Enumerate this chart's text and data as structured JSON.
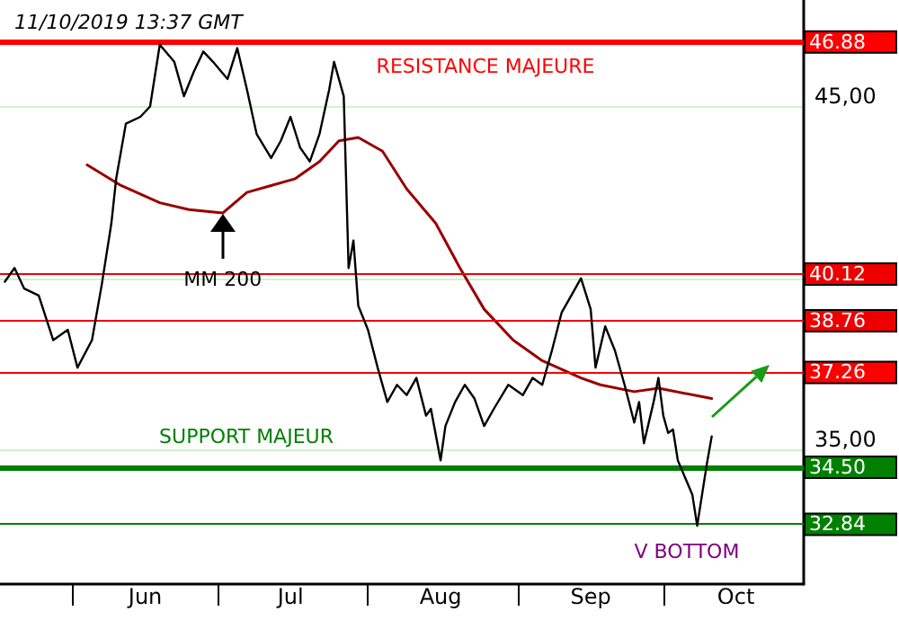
{
  "chart_data": {
    "type": "line",
    "title": "11/10/2019 13:37 GMT",
    "xlim": [
      "2019-05-17",
      "2019-10-30"
    ],
    "xticks": [
      {
        "value": "2019-06-01",
        "label": null
      },
      {
        "value": "2019-06-16",
        "label": "Jun"
      },
      {
        "value": "2019-07-01",
        "label": null
      },
      {
        "value": "2019-07-16",
        "label": "Jul"
      },
      {
        "value": "2019-08-01",
        "label": null
      },
      {
        "value": "2019-08-16",
        "label": "Aug"
      },
      {
        "value": "2019-09-01",
        "label": null
      },
      {
        "value": "2019-09-16",
        "label": "Sep"
      },
      {
        "value": "2019-10-01",
        "label": null
      },
      {
        "value": "2019-10-16",
        "label": "Oct"
      }
    ],
    "ylim": [
      31.1,
      48.1
    ],
    "yticks": [
      {
        "value": 35,
        "label": "35,00"
      },
      {
        "value": 40,
        "label": null
      },
      {
        "value": 45,
        "label": "45,00"
      }
    ],
    "grid": "y",
    "marker": "none",
    "line_style": "solid",
    "series": [
      {
        "color": "#000000",
        "x": [
          "2019-05-18",
          "2019-05-20",
          "2019-05-22",
          "2019-05-25",
          "2019-05-28",
          "2019-05-31",
          "2019-06-02",
          "2019-06-05",
          "2019-06-07",
          "2019-06-09",
          "2019-06-10",
          "2019-06-12",
          "2019-06-15",
          "2019-06-17",
          "2019-06-19",
          "2019-06-22",
          "2019-06-24",
          "2019-06-26",
          "2019-06-28",
          "2019-06-30",
          "2019-07-03",
          "2019-07-05",
          "2019-07-07",
          "2019-07-09",
          "2019-07-12",
          "2019-07-14",
          "2019-07-16",
          "2019-07-18",
          "2019-07-20",
          "2019-07-22",
          "2019-07-24",
          "2019-07-25",
          "2019-07-27",
          "2019-07-28",
          "2019-07-29",
          "2019-07-30",
          "2019-08-01",
          "2019-08-03",
          "2019-08-05",
          "2019-08-07",
          "2019-08-09",
          "2019-08-11",
          "2019-08-13",
          "2019-08-14",
          "2019-08-16",
          "2019-08-17",
          "2019-08-19",
          "2019-08-21",
          "2019-08-23",
          "2019-08-25",
          "2019-08-27",
          "2019-08-30",
          "2019-09-02",
          "2019-09-04",
          "2019-09-06",
          "2019-09-08",
          "2019-09-10",
          "2019-09-12",
          "2019-09-14",
          "2019-09-16",
          "2019-09-17",
          "2019-09-19",
          "2019-09-21",
          "2019-09-23",
          "2019-09-25",
          "2019-09-26",
          "2019-09-27",
          "2019-09-29",
          "2019-09-30",
          "2019-10-01",
          "2019-10-02",
          "2019-10-03",
          "2019-10-04",
          "2019-10-07",
          "2019-10-08",
          "2019-10-09",
          "2019-10-10",
          "2019-10-11"
        ],
        "values": [
          39.9,
          40.3,
          39.7,
          39.5,
          38.2,
          38.5,
          37.4,
          38.2,
          39.8,
          41.6,
          42.9,
          44.5,
          44.7,
          45.0,
          46.8,
          46.3,
          45.3,
          46.0,
          46.6,
          46.3,
          45.8,
          46.7,
          45.5,
          44.2,
          43.5,
          44.0,
          44.7,
          43.8,
          43.4,
          44.2,
          45.5,
          46.3,
          45.3,
          40.3,
          41.1,
          39.2,
          38.5,
          37.4,
          36.4,
          36.9,
          36.6,
          37.1,
          36.0,
          36.2,
          34.7,
          35.7,
          36.4,
          36.9,
          36.5,
          35.7,
          36.2,
          36.9,
          36.6,
          37.1,
          36.9,
          37.9,
          39.0,
          39.5,
          40.0,
          39.1,
          37.4,
          38.6,
          37.9,
          36.9,
          35.8,
          36.4,
          35.2,
          36.4,
          37.1,
          36.0,
          35.5,
          35.6,
          34.7,
          33.7,
          32.8,
          33.7,
          34.6,
          35.4
        ]
      },
      {
        "color": "#990000",
        "x": [
          "2019-06-04",
          "2019-06-11",
          "2019-06-19",
          "2019-06-25",
          "2019-07-02",
          "2019-07-07",
          "2019-07-12",
          "2019-07-17",
          "2019-07-22",
          "2019-07-26",
          "2019-07-30",
          "2019-08-04",
          "2019-08-09",
          "2019-08-15",
          "2019-08-20",
          "2019-08-25",
          "2019-08-31",
          "2019-09-06",
          "2019-09-14",
          "2019-09-18",
          "2019-09-25",
          "2019-09-30",
          "2019-10-11"
        ],
        "values": [
          43.3,
          42.7,
          42.2,
          42.0,
          41.9,
          42.5,
          42.7,
          42.9,
          43.4,
          44.0,
          44.1,
          43.7,
          42.6,
          41.6,
          40.3,
          39.1,
          38.2,
          37.6,
          37.1,
          36.9,
          36.7,
          36.8,
          36.5
        ]
      }
    ],
    "ref_lines": [
      {
        "axis": "y",
        "value": 46.88,
        "label": "46.88",
        "color": "#ff0000"
      },
      {
        "axis": "y",
        "value": 40.12,
        "label": "40.12",
        "color": "#ee0000"
      },
      {
        "axis": "y",
        "value": 38.76,
        "label": "38.76",
        "color": "#ee0000"
      },
      {
        "axis": "y",
        "value": 37.26,
        "label": "37.26",
        "color": "#ff0000"
      },
      {
        "axis": "y",
        "value": 34.5,
        "label": "34.50",
        "color": "#008000"
      },
      {
        "axis": "y",
        "value": 32.84,
        "label": "32.84",
        "color": "#008000"
      }
    ],
    "annotations": [
      "RESISTANCE MAJEURE",
      "SUPPORT MAJEUR",
      {
        "text": "MM 200",
        "x": "2019-07-02",
        "y": 41.9
      },
      "V BOTTOM"
    ]
  }
}
